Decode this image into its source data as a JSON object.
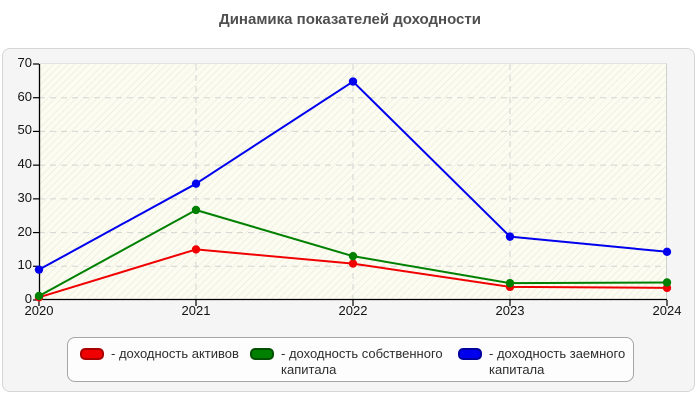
{
  "page": {
    "title": "Динамика показателей доходности"
  },
  "chart_data": {
    "type": "line",
    "title": "Динамика показателей доходности",
    "x_labels": [
      "2020",
      "2021",
      "2022",
      "2023",
      "2024"
    ],
    "y_ticks": [
      0,
      10,
      20,
      30,
      40,
      50,
      60,
      70
    ],
    "ylim": [
      0,
      70
    ],
    "xlabel": "",
    "ylabel": "",
    "grid": "dashed horizontal and vertical gridlines",
    "legend_position": "bottom",
    "plot_background": "#fcfcf0",
    "series": [
      {
        "name": "доходность активов",
        "legend_label": "- доходность активов",
        "color": "#f00000",
        "swatch_border_color": "#a80000",
        "values": [
          0.8,
          15,
          10.8,
          3.9,
          3.6
        ]
      },
      {
        "name": "доходность собственного капитала",
        "legend_label": "- доходность собственного капитала",
        "color": "#008000",
        "swatch_border_color": "#015001",
        "values": [
          1.2,
          26.7,
          13,
          5,
          5.2
        ]
      },
      {
        "name": "доходность заемного капитала",
        "legend_label": "- доходность заемного капитала",
        "color": "#0000ee",
        "swatch_border_color": "#0000a0",
        "values": [
          9,
          34.5,
          64.8,
          18.8,
          14.3
        ]
      }
    ]
  }
}
